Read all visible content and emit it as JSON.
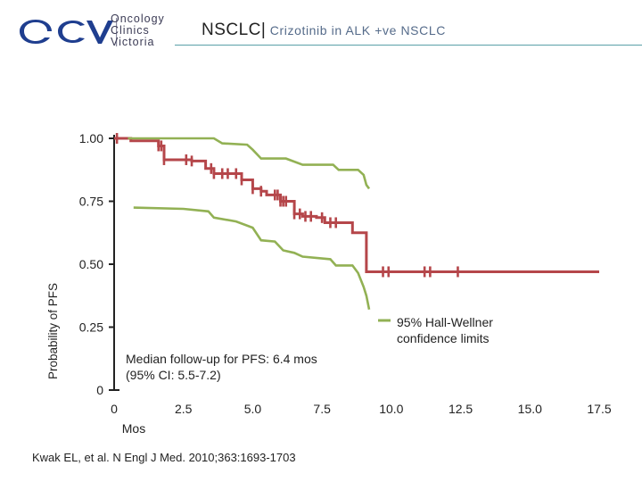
{
  "header": {
    "logo": {
      "text_lines": [
        "Oncology",
        "Clinics",
        "Victoria"
      ],
      "mark": "OCV"
    },
    "title_main": "NSCLC|",
    "title_sub": "Crizotinib in ALK +ve NSCLC"
  },
  "chart_data": {
    "type": "line",
    "xlabel": "Mos",
    "ylabel": "Probability of PFS",
    "xlim": [
      0,
      17.5
    ],
    "ylim": [
      0,
      1
    ],
    "x_ticks": [
      "0",
      "2.5",
      "5.0",
      "7.5",
      "10.0",
      "12.5",
      "15.0",
      "17.5"
    ],
    "y_ticks": [
      "0",
      "0.25",
      "0.50",
      "0.75",
      "1.00"
    ],
    "colors": {
      "km": "#b5464a",
      "ci": "#92b154",
      "axis": "#222222"
    },
    "series": [
      {
        "role": "estimate",
        "steps": [
          [
            0,
            1.0
          ],
          [
            0.6,
            0.99
          ],
          [
            1.6,
            0.97
          ],
          [
            1.8,
            0.915
          ],
          [
            2.8,
            0.91
          ],
          [
            3.3,
            0.88
          ],
          [
            3.6,
            0.86
          ],
          [
            4.6,
            0.835
          ],
          [
            5.0,
            0.8
          ],
          [
            5.3,
            0.79
          ],
          [
            5.5,
            0.775
          ],
          [
            6.0,
            0.75
          ],
          [
            6.5,
            0.7
          ],
          [
            6.8,
            0.69
          ],
          [
            7.3,
            0.685
          ],
          [
            7.6,
            0.665
          ],
          [
            8.2,
            0.665
          ],
          [
            8.6,
            0.625
          ],
          [
            9.1,
            0.62
          ],
          [
            9.1,
            0.47
          ],
          [
            17.5,
            0.47
          ]
        ],
        "censor_x": [
          0.1,
          1.6,
          1.7,
          1.8,
          2.6,
          2.8,
          3.5,
          3.6,
          3.9,
          4.1,
          4.4,
          4.6,
          5.0,
          5.3,
          5.8,
          5.9,
          6.0,
          6.1,
          6.2,
          6.5,
          6.7,
          6.9,
          7.1,
          7.5,
          7.8,
          8.0,
          9.7,
          9.9,
          11.2,
          11.4,
          12.4
        ]
      },
      {
        "role": "upper-ci",
        "points": [
          [
            0.5,
            1.0
          ],
          [
            3.6,
            1.0
          ],
          [
            3.9,
            0.98
          ],
          [
            4.8,
            0.975
          ],
          [
            5.0,
            0.955
          ],
          [
            5.3,
            0.92
          ],
          [
            6.2,
            0.92
          ],
          [
            6.8,
            0.895
          ],
          [
            7.9,
            0.895
          ],
          [
            8.1,
            0.875
          ],
          [
            8.8,
            0.875
          ],
          [
            9.0,
            0.855
          ],
          [
            9.1,
            0.815
          ],
          [
            9.2,
            0.8
          ]
        ]
      },
      {
        "role": "lower-ci",
        "points": [
          [
            0.7,
            0.725
          ],
          [
            2.5,
            0.72
          ],
          [
            3.4,
            0.71
          ],
          [
            3.6,
            0.685
          ],
          [
            4.4,
            0.67
          ],
          [
            5.0,
            0.645
          ],
          [
            5.3,
            0.595
          ],
          [
            5.8,
            0.59
          ],
          [
            6.1,
            0.555
          ],
          [
            6.5,
            0.545
          ],
          [
            6.8,
            0.53
          ],
          [
            7.8,
            0.52
          ],
          [
            8.0,
            0.495
          ],
          [
            8.6,
            0.495
          ],
          [
            8.8,
            0.465
          ],
          [
            9.0,
            0.41
          ],
          [
            9.1,
            0.375
          ],
          [
            9.2,
            0.32
          ]
        ]
      }
    ],
    "legend_label_lines": [
      "95% Hall-Wellner",
      "confidence limits"
    ],
    "annotation_lines": [
      "Median follow-up for PFS: 6.4 mos",
      "(95% CI: 5.5-7.2)"
    ]
  },
  "citation": "Kwak EL, et al. N Engl J Med. 2010;363:1693-1703"
}
